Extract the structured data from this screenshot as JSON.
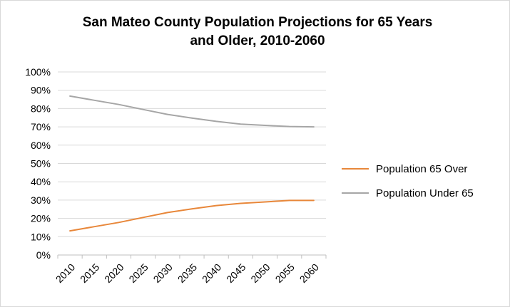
{
  "chart_data": {
    "type": "line",
    "title_line1": "San Mateo County Population Projections for 65 Years",
    "title_line2": "and Older, 2010-2060",
    "xlabel": "",
    "ylabel": "",
    "categories": [
      "2010",
      "2015",
      "2020",
      "2025",
      "2030",
      "2035",
      "2040",
      "2045",
      "2050",
      "2055",
      "2060"
    ],
    "y_ticks": [
      "0%",
      "10%",
      "20%",
      "30%",
      "40%",
      "50%",
      "60%",
      "70%",
      "80%",
      "90%",
      "100%"
    ],
    "ylim": [
      0,
      100
    ],
    "grid": true,
    "legend_position": "right",
    "series": [
      {
        "name": "Population  65 Over",
        "color": "#e8873a",
        "values": [
          13.2,
          15.5,
          17.8,
          20.5,
          23.2,
          25.2,
          27.0,
          28.2,
          29.0,
          29.8,
          29.8
        ]
      },
      {
        "name": "Population Under 65",
        "color": "#a6a6a6",
        "values": [
          86.8,
          84.5,
          82.2,
          79.5,
          76.8,
          74.8,
          73.0,
          71.5,
          70.8,
          70.2,
          70.0
        ]
      }
    ]
  }
}
